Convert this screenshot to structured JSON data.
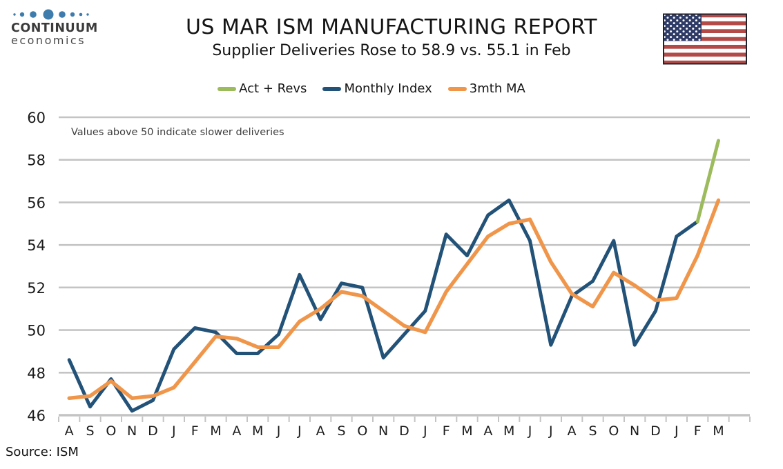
{
  "header": {
    "logo_line1": "CONTINUUM",
    "logo_line2": "economics",
    "title": "US MAR ISM MANUFACTURING REPORT",
    "subtitle": "Supplier Deliveries Rose to 58.9 vs. 55.1 in Feb"
  },
  "legend": [
    {
      "label": "Act + Revs",
      "color": "#9CBB5C"
    },
    {
      "label": "Monthly Index",
      "color": "#235279"
    },
    {
      "label": "3mth MA",
      "color": "#F0964B"
    }
  ],
  "source": "Source: ISM",
  "colors": {
    "grid": "#C4C4C4",
    "logo_dot_blue": "#3D7CAC",
    "flag_red": "#B34A48",
    "flag_blue": "#2E3B66"
  },
  "chart_data": {
    "type": "line",
    "title": "US MAR ISM MANUFACTURING REPORT",
    "subtitle": "Supplier Deliveries Rose to 58.9 vs. 55.1 in Feb",
    "annotation": "Values above 50 indicate slower deliveries",
    "xlabel": "",
    "ylabel": "",
    "ylim": [
      46,
      60
    ],
    "yticks": [
      46,
      48,
      50,
      52,
      54,
      56,
      58,
      60
    ],
    "grid": true,
    "legend_position": "top",
    "categories": [
      "A",
      "S",
      "O",
      "N",
      "D",
      "J",
      "F",
      "M",
      "A",
      "M",
      "J",
      "J",
      "A",
      "S",
      "O",
      "N",
      "D",
      "J",
      "F",
      "M",
      "A",
      "M",
      "J",
      "J",
      "A",
      "S",
      "O",
      "N",
      "D",
      "J",
      "F",
      "M"
    ],
    "series": [
      {
        "name": "Act + Revs",
        "color": "#9CBB5C",
        "values": [
          null,
          null,
          null,
          null,
          null,
          null,
          null,
          null,
          null,
          null,
          null,
          null,
          null,
          null,
          null,
          null,
          null,
          null,
          null,
          null,
          null,
          null,
          null,
          null,
          null,
          null,
          null,
          null,
          null,
          null,
          55.1,
          58.9
        ]
      },
      {
        "name": "Monthly Index",
        "color": "#235279",
        "values": [
          48.6,
          46.4,
          47.7,
          46.2,
          46.7,
          49.1,
          50.1,
          49.9,
          48.9,
          48.9,
          49.8,
          52.6,
          50.5,
          52.2,
          52.0,
          48.7,
          49.8,
          50.9,
          54.5,
          53.5,
          55.4,
          56.1,
          54.2,
          49.3,
          51.6,
          52.3,
          54.2,
          49.3,
          50.9,
          54.4,
          55.1,
          null
        ]
      },
      {
        "name": "3mth MA",
        "color": "#F0964B",
        "values": [
          46.8,
          46.9,
          47.6,
          46.8,
          46.9,
          47.3,
          48.5,
          49.7,
          49.6,
          49.2,
          49.2,
          50.4,
          51.0,
          51.8,
          51.6,
          50.9,
          50.2,
          49.9,
          51.8,
          53.1,
          54.4,
          55.0,
          55.2,
          53.2,
          51.7,
          51.1,
          52.7,
          52.1,
          51.4,
          51.5,
          53.5,
          56.1
        ]
      }
    ]
  }
}
